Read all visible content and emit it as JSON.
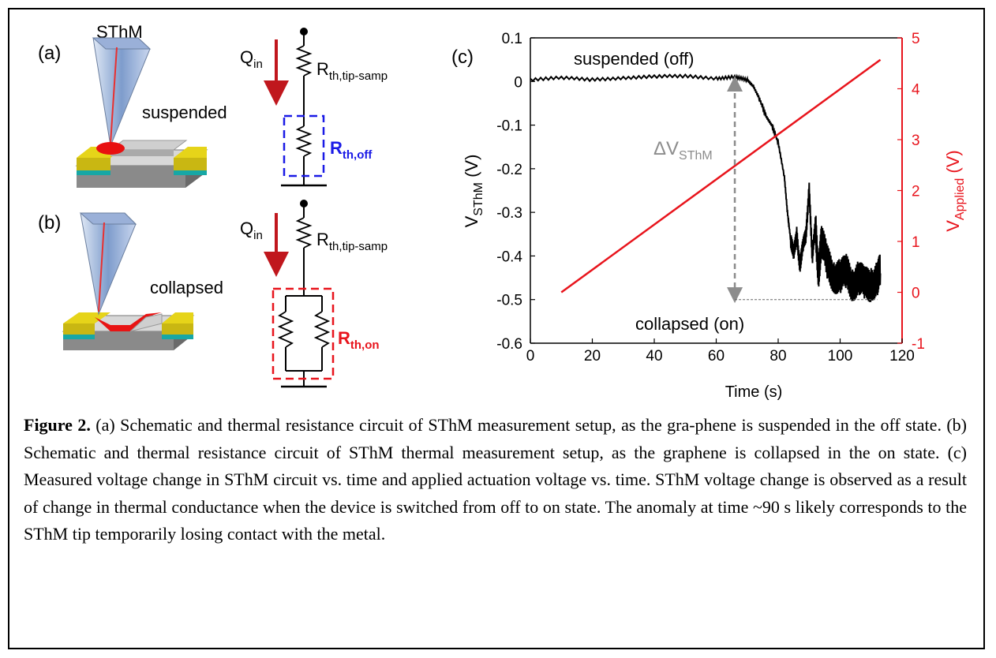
{
  "panels": {
    "a_label": "(a)",
    "b_label": "(b)",
    "c_label": "(c)",
    "sthm_label": "SThM",
    "suspended_label": "suspended",
    "collapsed_label": "collapsed"
  },
  "circuit_a": {
    "q_main": "Q",
    "q_sub": "in",
    "r_tip_main": "R",
    "r_tip_sub": "th,tip-samp",
    "r_off_main": "R",
    "r_off_sub": "th,off"
  },
  "circuit_b": {
    "q_main": "Q",
    "q_sub": "in",
    "r_tip_main": "R",
    "r_tip_sub": "th,tip-samp",
    "r_on_main": "R",
    "r_on_sub": "th,on"
  },
  "colors": {
    "sthm_trace": "#000000",
    "applied_line": "#e8141c",
    "off_box": "#1a1ae6",
    "on_box": "#e8141c",
    "arrow_q": "#c0171d",
    "delta_arrow": "#8c8c8c"
  },
  "chart_data": {
    "type": "line",
    "xlabel": "Time (s)",
    "ylabel_left": {
      "main": "V",
      "sub": "SThM",
      "suffix": " (V)"
    },
    "ylabel_right": {
      "main": "V",
      "sub": "Applied",
      "suffix": " (V)"
    },
    "xlim": [
      0,
      120
    ],
    "ylim_left": [
      -0.6,
      0.1
    ],
    "ylim_right": [
      -1,
      5
    ],
    "x_ticks": [
      "0",
      "20",
      "40",
      "60",
      "80",
      "100",
      "120"
    ],
    "y_left_ticks": [
      "0.1",
      "0",
      "-0.1",
      "-0.2",
      "-0.3",
      "-0.4",
      "-0.5",
      "-0.6"
    ],
    "y_right_ticks": [
      "5",
      "4",
      "3",
      "2",
      "1",
      "0",
      "-1"
    ],
    "annotations": {
      "suspended": "suspended (off)",
      "collapsed": "collapsed (on)",
      "delta_main": "ΔV",
      "delta_sub": "SThM"
    },
    "series": [
      {
        "axis": "left",
        "color": "#000000",
        "x": [
          0,
          10,
          20,
          30,
          40,
          50,
          60,
          66,
          70,
          72,
          74,
          76,
          78,
          80,
          82,
          83,
          84,
          85,
          86,
          87,
          88,
          89,
          90,
          91,
          92,
          93,
          94,
          96,
          98,
          100,
          102,
          104,
          106,
          108,
          110,
          112,
          113
        ],
        "y": [
          0.005,
          0.008,
          0.004,
          0.009,
          0.011,
          0.012,
          0.008,
          0.01,
          0.003,
          -0.01,
          -0.04,
          -0.08,
          -0.1,
          -0.14,
          -0.22,
          -0.3,
          -0.36,
          -0.4,
          -0.35,
          -0.42,
          -0.38,
          -0.35,
          -0.24,
          -0.41,
          -0.33,
          -0.43,
          -0.37,
          -0.42,
          -0.44,
          -0.45,
          -0.44,
          -0.46,
          -0.45,
          -0.47,
          -0.46,
          -0.45,
          -0.44
        ]
      },
      {
        "axis": "right",
        "color": "#e8141c",
        "x": [
          10,
          113
        ],
        "y": [
          0,
          4.57
        ]
      }
    ]
  },
  "caption": {
    "title": "Figure 2.",
    "text": " (a) Schematic and thermal resistance circuit of SThM measurement setup, as the gra-phene is suspended in the off state. (b) Schematic and thermal resistance circuit of SThM thermal measurement setup, as the graphene is collapsed in the on state. (c) Measured voltage change in SThM circuit vs. time and applied actuation voltage vs. time. SThM voltage change is observed as a result of change in thermal conductance when the device is switched from off to on state. The anomaly at time ~90 s likely corresponds to the SThM tip temporarily losing contact with the metal."
  }
}
